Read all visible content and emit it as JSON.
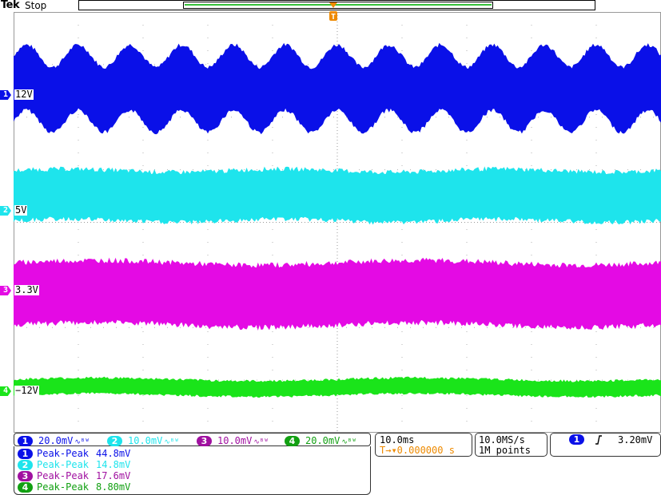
{
  "header": {
    "brand": "Tek",
    "run_state": "Stop",
    "trigger_marker": "T"
  },
  "colors": {
    "ch1": "#0a10e8",
    "ch2": "#1ee4ec",
    "ch3": "#e40ae4",
    "ch4": "#1ae41a",
    "trigger": "#ee8a00",
    "grid": "#b0b0b0"
  },
  "channels": [
    {
      "num": "1",
      "offset_label": "12V",
      "scale": "20.0mV",
      "coupling": "∿ᴮᵂ"
    },
    {
      "num": "2",
      "offset_label": "5V",
      "scale": "10.0mV",
      "coupling": "∿ᴮᵂ"
    },
    {
      "num": "3",
      "offset_label": "3.3V",
      "scale": "10.0mV",
      "coupling": "∿ᴮᵂ"
    },
    {
      "num": "4",
      "offset_label": "−12V",
      "scale": "20.0mV",
      "coupling": "∿ᴮᵂ"
    }
  ],
  "measurements": [
    {
      "channel": "1",
      "name": "Peak-Peak",
      "value": "44.8mV"
    },
    {
      "channel": "2",
      "name": "Peak-Peak",
      "value": "14.8mV"
    },
    {
      "channel": "3",
      "name": "Peak-Peak",
      "value": "17.6mV"
    },
    {
      "channel": "4",
      "name": "Peak-Peak",
      "value": "8.80mV"
    }
  ],
  "timebase": {
    "horizontal_scale": "10.0ms",
    "trigger_position": "T→▾0.000000 s",
    "sample_rate": "10.0MS/s",
    "record_length": "1M points"
  },
  "trigger": {
    "source": "1",
    "slope_icon": "rising-edge-icon",
    "level": "3.20mV"
  }
}
